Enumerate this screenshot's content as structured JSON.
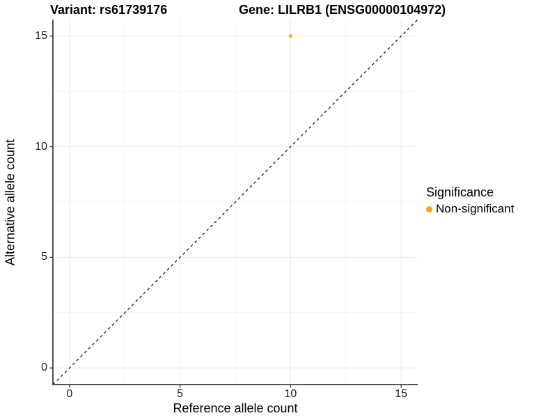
{
  "titles": {
    "variant": "Variant: rs61739176",
    "gene": "Gene: LILRB1 (ENSG00000104972)"
  },
  "legend": {
    "title": "Significance",
    "items": [
      {
        "label": "Non-significant",
        "color": "#FFA500"
      }
    ]
  },
  "chart_data": {
    "type": "scatter",
    "title": "Variant: rs61739176 / Gene: LILRB1 (ENSG00000104972)",
    "xlabel": "Reference allele count",
    "ylabel": "Alternative allele count",
    "xlim": [
      -0.75,
      15.75
    ],
    "ylim": [
      -0.75,
      15.75
    ],
    "x_ticks": [
      0,
      5,
      10,
      15
    ],
    "y_ticks": [
      0,
      5,
      10,
      15
    ],
    "x_minor_ticks": [
      2.5,
      7.5,
      12.5
    ],
    "y_minor_ticks": [
      2.5,
      7.5,
      12.5
    ],
    "grid": true,
    "legend_position": "right",
    "series": [
      {
        "name": "Non-significant",
        "color": "#FFA500",
        "points": [
          {
            "x": 10,
            "y": 15
          }
        ]
      }
    ],
    "reference_line": {
      "type": "identity",
      "slope": 1,
      "intercept": 0,
      "style": "dashed",
      "color": "#000000"
    },
    "colors": {
      "background": "#FFFFFF",
      "grid_major": "#EBEBEB",
      "grid_minor": "#F4F4F4",
      "axis_line": "#3F3F3F",
      "tick_mark": "#3F3F3F",
      "point": "#FFA500"
    }
  }
}
